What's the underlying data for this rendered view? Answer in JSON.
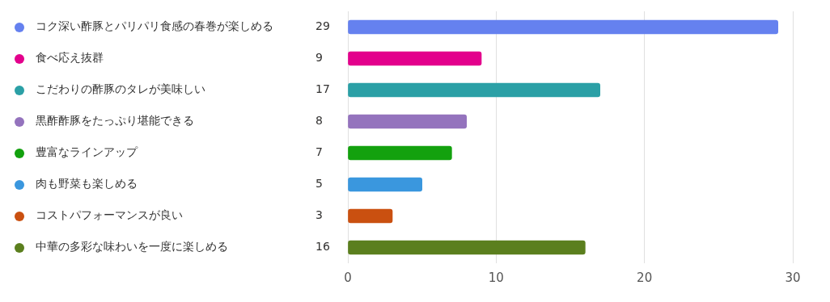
{
  "chart_data": {
    "type": "bar",
    "orientation": "horizontal",
    "categories": [
      "コク深い酢豚とパリパリ食感の春巻が楽しめる",
      "食べ応え抜群",
      "こだわりの酢豚のタレが美味しい",
      "黒酢酢豚をたっぷり堪能できる",
      "豊富なラインアップ",
      "肉も野菜も楽しめる",
      "コストパフォーマンスが良い",
      "中華の多彩な味わいを一度に楽しめる"
    ],
    "values": [
      29,
      9,
      17,
      8,
      7,
      5,
      3,
      16
    ],
    "colors": [
      "#6581ef",
      "#e3008c",
      "#2ba0a6",
      "#9473bd",
      "#13a10e",
      "#3a97de",
      "#ca5010",
      "#5b7f1e"
    ],
    "xlim": [
      0,
      30
    ],
    "xticks": [
      0,
      10,
      20,
      30
    ],
    "value_labels": [
      "29",
      "9",
      "17",
      "8",
      "7",
      "5",
      "3",
      "16"
    ],
    "grid": "x"
  }
}
